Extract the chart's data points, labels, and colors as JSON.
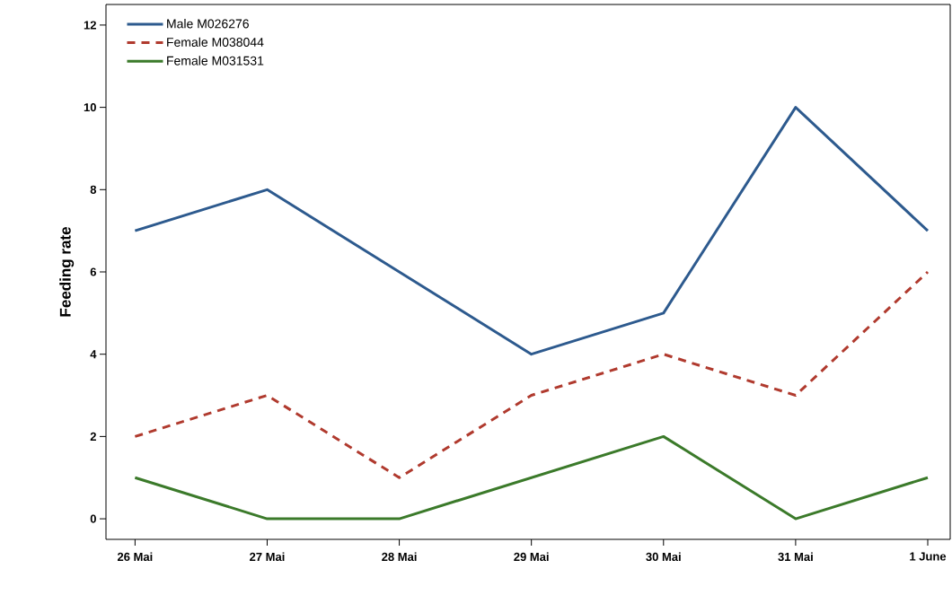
{
  "chart_data": {
    "type": "line",
    "ylabel": "Feeding rate",
    "categories": [
      "26 Mai",
      "27 Mai",
      "28 Mai",
      "29 Mai",
      "30 Mai",
      "31 Mai",
      "1 June"
    ],
    "series": [
      {
        "name": "Male M026276",
        "color": "#2d5a8e",
        "line_style": "solid",
        "values": [
          7,
          8,
          6,
          4,
          5,
          10,
          7
        ]
      },
      {
        "name": "Female M038044",
        "color": "#b03a2e",
        "line_style": "dashed",
        "values": [
          2,
          3,
          1,
          3,
          4,
          3,
          6
        ]
      },
      {
        "name": "Female M031531",
        "color": "#3b7a2a",
        "line_style": "solid",
        "values": [
          1,
          0,
          0,
          1,
          2,
          0,
          1
        ]
      }
    ],
    "ylim": [
      -0.5,
      12.5
    ],
    "yticks": [
      0,
      2,
      4,
      6,
      8,
      10,
      12
    ],
    "grid": false,
    "legend": "top left",
    "marker": "none"
  }
}
